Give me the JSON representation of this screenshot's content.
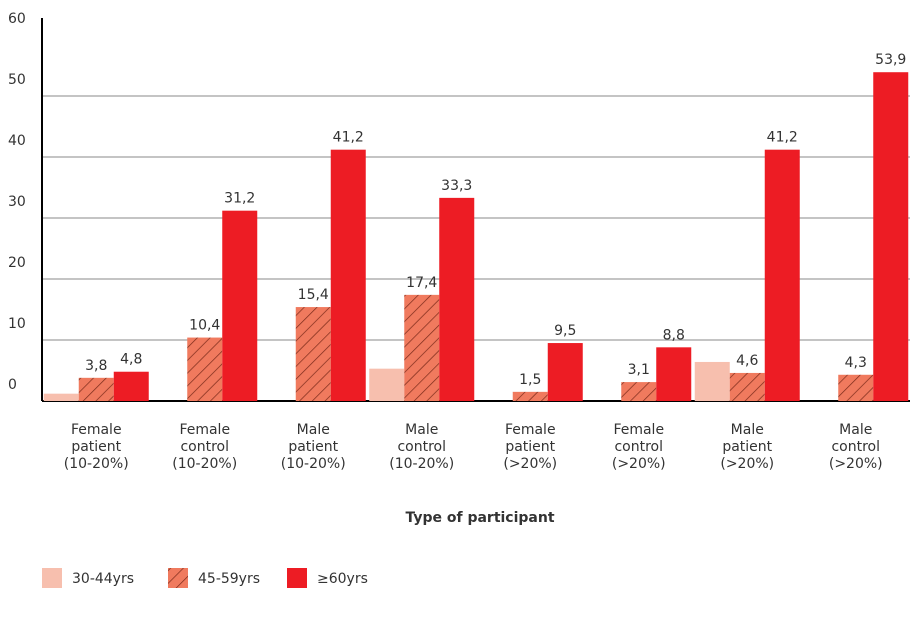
{
  "chart_data": {
    "type": "bar",
    "x_label": "Type of participant",
    "categories": [
      "Female patient (10-20%)",
      "Female control (10-20%)",
      "Male patient (10-20%)",
      "Male control (10-20%)",
      "Female patient (>20%)",
      "Female control (>20%)",
      "Male patient (>20%)",
      "Male control (>20%)"
    ],
    "series": [
      {
        "name": "30-44yrs",
        "color": "#f7bfae",
        "values": [
          1.2,
          null,
          null,
          5.3,
          null,
          null,
          6.4,
          null
        ]
      },
      {
        "name": "45-59yrs",
        "color": "#f07a5e",
        "hatch": true,
        "values": [
          3.8,
          10.4,
          15.4,
          17.4,
          1.5,
          3.1,
          4.6,
          4.3
        ],
        "value_labels": [
          "3,8",
          "10,4",
          "15,4",
          "17,4",
          "1,5",
          "3,1",
          "4,6",
          "4,3"
        ]
      },
      {
        "name": "≥60yrs",
        "color": "#ed1c24",
        "values": [
          4.8,
          31.2,
          41.2,
          33.3,
          9.5,
          8.8,
          41.2,
          53.9
        ],
        "value_labels": [
          "4,8",
          "31,2",
          "41,2",
          "33,3",
          "9,5",
          "8,8",
          "41,2",
          "53,9"
        ]
      }
    ],
    "ylim": [
      0,
      60
    ],
    "yticks": [
      0,
      10,
      20,
      30,
      40,
      50,
      60
    ],
    "grid": true,
    "legend": "bottom"
  }
}
